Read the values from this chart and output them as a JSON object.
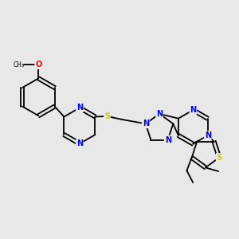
{
  "background_color": "#e8e8e8",
  "bond_color": "#000000",
  "atom_colors": {
    "N": "#0000ff",
    "S": "#cccc00",
    "O": "#ff0000",
    "C": "#000000"
  },
  "font_size": 7.0,
  "lw": 1.3
}
